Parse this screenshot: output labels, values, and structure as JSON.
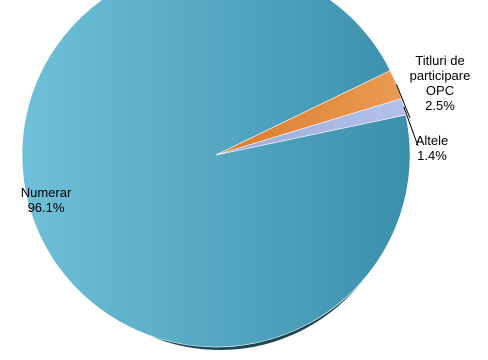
{
  "chart_data": {
    "type": "pie",
    "slices": [
      {
        "label_lines": [
          "Numerar"
        ],
        "value_label": "96.1%",
        "value": 96.1,
        "color": "#4aa3bf"
      },
      {
        "label_lines": [
          "Titluri de",
          "participare",
          "OPC"
        ],
        "value_label": "2.5%",
        "value": 2.5,
        "color": "#e08a3c"
      },
      {
        "label_lines": [
          "Altele"
        ],
        "value_label": "1.4%",
        "value": 1.4,
        "color": "#a4b4e0"
      }
    ]
  }
}
